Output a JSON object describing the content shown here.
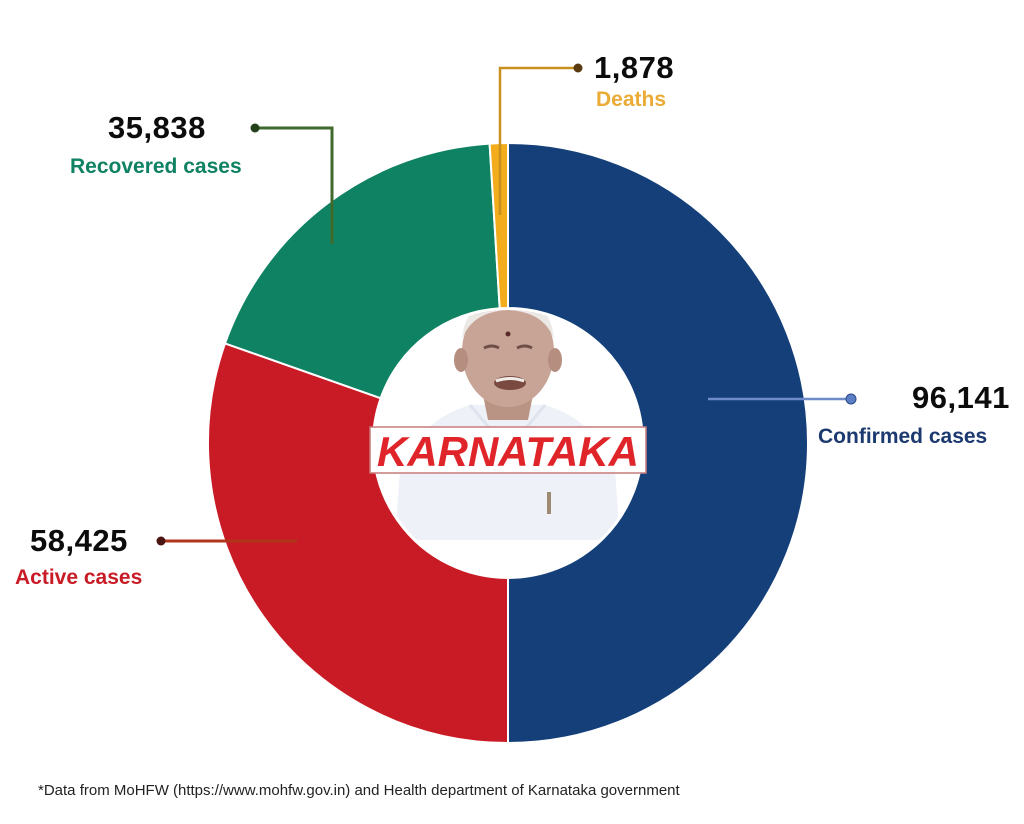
{
  "chart_data": {
    "type": "pie",
    "subtype": "donut",
    "title": "KARNATAKA",
    "series": [
      {
        "name": "Confirmed cases",
        "value": 96141,
        "display": "96,141",
        "color": "#143f79"
      },
      {
        "name": "Active cases",
        "value": 58425,
        "display": "58,425",
        "color": "#c91b25"
      },
      {
        "name": "Recovered cases",
        "value": 35838,
        "display": "35,838",
        "color": "#0e8262"
      },
      {
        "name": "Deaths",
        "value": 1878,
        "display": "1,878",
        "color": "#f2ac1c"
      }
    ],
    "note": "Confirmed cases spans half the ring; Active + Recovered + Deaths make up the other half",
    "legend": "callout labels with leader lines"
  },
  "labels": {
    "confirmed": {
      "number": "96,141",
      "text": "Confirmed cases",
      "color": "#1d3a70",
      "line": "#4a6bb5"
    },
    "active": {
      "number": "58,425",
      "text": "Active cases",
      "color": "#c91b25",
      "line": "#b0351a"
    },
    "recovered": {
      "number": "35,838",
      "text": "Recovered cases",
      "color": "#0e8262",
      "line": "#3f6a2c"
    },
    "deaths": {
      "number": "1,878",
      "text": "Deaths",
      "color": "#eaac36",
      "line": "#c8901c"
    }
  },
  "center": {
    "banner": "KARNATAKA",
    "banner_color": "#e0252a"
  },
  "footnote": "*Data from MoHFW (https://www.mohfw.gov.in) and Health department of Karnataka government"
}
